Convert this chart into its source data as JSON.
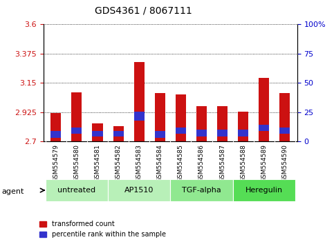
{
  "title": "GDS4361 / 8067111",
  "samples": [
    "GSM554579",
    "GSM554580",
    "GSM554581",
    "GSM554582",
    "GSM554583",
    "GSM554584",
    "GSM554585",
    "GSM554586",
    "GSM554587",
    "GSM554588",
    "GSM554589",
    "GSM554590"
  ],
  "red_values": [
    2.92,
    3.08,
    2.84,
    2.82,
    3.31,
    3.07,
    3.06,
    2.97,
    2.97,
    2.93,
    3.19,
    3.07
  ],
  "blue_heights": [
    0.05,
    0.05,
    0.04,
    0.04,
    0.07,
    0.05,
    0.05,
    0.05,
    0.05,
    0.05,
    0.05,
    0.05
  ],
  "blue_bottoms": [
    2.73,
    2.76,
    2.74,
    2.74,
    2.86,
    2.73,
    2.76,
    2.74,
    2.74,
    2.74,
    2.78,
    2.76
  ],
  "y_min": 2.7,
  "y_max": 3.6,
  "y_ticks_left": [
    2.7,
    2.925,
    3.15,
    3.375,
    3.6
  ],
  "y_ticks_right_pct": [
    0,
    25,
    50,
    75,
    100
  ],
  "group_labels": [
    "untreated",
    "AP1510",
    "TGF-alpha",
    "Heregulin"
  ],
  "group_ranges": [
    [
      0,
      2
    ],
    [
      3,
      5
    ],
    [
      6,
      8
    ],
    [
      9,
      11
    ]
  ],
  "group_colors": [
    "#b8f0b8",
    "#b8f0b8",
    "#90e890",
    "#55dd55"
  ],
  "bar_color_red": "#cc1111",
  "bar_color_blue": "#3333cc",
  "bar_width": 0.5,
  "left_axis_color": "#cc1111",
  "right_axis_color": "#0000cc",
  "legend_red_label": "transformed count",
  "legend_blue_label": "percentile rank within the sample",
  "agent_label": "agent",
  "tick_area_color": "#c8c8c8"
}
